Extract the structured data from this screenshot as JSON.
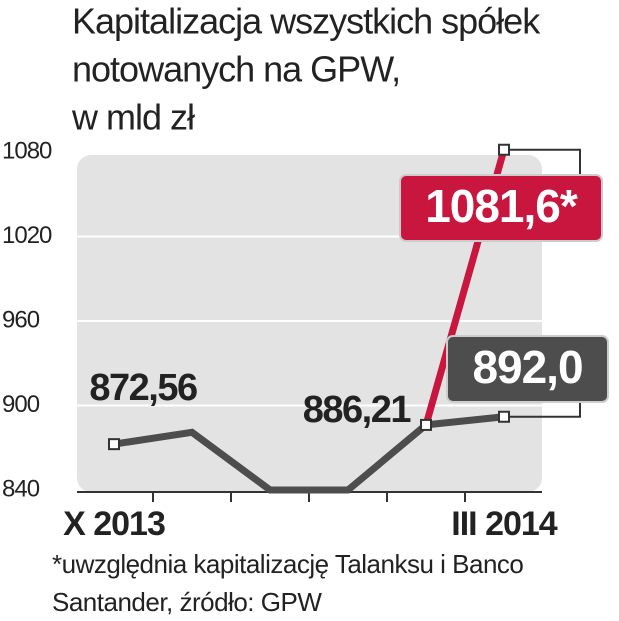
{
  "chart_data": {
    "type": "line",
    "title": [
      "Kapitalizacja wszystkich spółek",
      "notowanych na GPW,",
      "w mld zł"
    ],
    "categories": [
      "X 2013",
      null,
      null,
      null,
      null,
      "III 2014"
    ],
    "series": [
      {
        "color": "#4d4d4d",
        "values": [
          872.56,
          881,
          840,
          840,
          886.21,
          892.0
        ],
        "value_labels": [
          "872,56",
          null,
          null,
          null,
          "886,21",
          "892,0"
        ]
      },
      {
        "color": "#c8163f",
        "values": [
          null,
          null,
          null,
          null,
          886.21,
          1081.6
        ],
        "value_labels": [
          null,
          null,
          null,
          null,
          null,
          "1081,6*"
        ]
      }
    ],
    "ylim": [
      840,
      1080
    ],
    "yticks": [
      840,
      900,
      960,
      1020,
      1080
    ],
    "grid": true,
    "notes": [
      "*uwzględnia kapitalizację Talanksu i Banco",
      "Santander, źródło: GPW"
    ]
  }
}
